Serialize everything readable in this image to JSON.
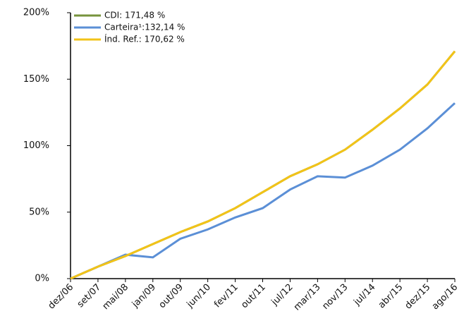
{
  "chart_data": {
    "type": "line",
    "categories": [
      "dez/06",
      "set/07",
      "mai/08",
      "jan/09",
      "out/09",
      "jun/10",
      "fev/11",
      "out/11",
      "jul/12",
      "mar/13",
      "nov/13",
      "jul/14",
      "abr/15",
      "dez/15",
      "ago/16"
    ],
    "series": [
      {
        "name": "CDI: 171,48 %",
        "color": "#77933c",
        "values": [
          0,
          9,
          17,
          26,
          35,
          43,
          53,
          65,
          77,
          86,
          97,
          112,
          128,
          146,
          171
        ]
      },
      {
        "name": "Carteira¹:132,14 %",
        "color": "#5b8fd6",
        "values": [
          0,
          9,
          18,
          16,
          30,
          37,
          46,
          53,
          67,
          77,
          76,
          85,
          97,
          113,
          132
        ]
      },
      {
        "name": "Índ. Ref.: 170,62 %",
        "color": "#f2c318",
        "values": [
          0,
          9,
          17,
          26,
          35,
          43,
          53,
          65,
          77,
          86,
          97,
          112,
          128,
          146,
          171
        ]
      }
    ],
    "ylim": [
      0,
      200
    ],
    "yticks": [
      {
        "value": 0,
        "label": "0%"
      },
      {
        "value": 50,
        "label": "50%"
      },
      {
        "value": 100,
        "label": "100%"
      },
      {
        "value": 150,
        "label": "150%"
      },
      {
        "value": 200,
        "label": "200%"
      }
    ],
    "grid": false,
    "legend": "top-left"
  }
}
